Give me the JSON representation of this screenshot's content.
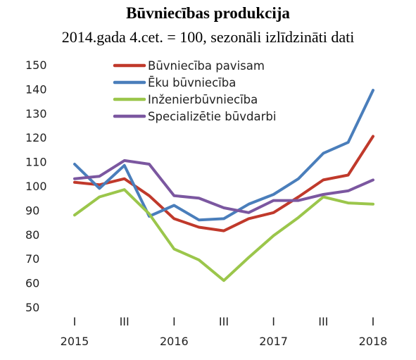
{
  "chart_data": {
    "type": "line",
    "title": "Būvniecības produkcija",
    "subtitle": "2014.gada 4.cet. = 100, sezonāli izlīdzināti dati",
    "xlabel": "",
    "ylabel": "",
    "ylim": [
      50,
      150
    ],
    "yticks": [
      50,
      60,
      70,
      80,
      90,
      100,
      110,
      120,
      130,
      140,
      150
    ],
    "quarters": [
      "2015 Q1",
      "2015 Q2",
      "2015 Q3",
      "2015 Q4",
      "2016 Q1",
      "2016 Q2",
      "2016 Q3",
      "2016 Q4",
      "2017 Q1",
      "2017 Q2",
      "2017 Q3",
      "2017 Q4",
      "2018 Q1"
    ],
    "x_quarter_ticks": [
      "I",
      "III",
      "I",
      "III",
      "I",
      "III",
      "I"
    ],
    "x_year_ticks": [
      "2015",
      "2016",
      "2017",
      "2018"
    ],
    "grid": false,
    "legend_position": "top",
    "series": [
      {
        "name": "Būvniecība pavisam",
        "color": "#c0392b",
        "values": [
          101.5,
          100.5,
          103,
          96,
          86.5,
          83,
          81.5,
          86.5,
          89,
          95.5,
          102.5,
          104.5,
          120.5
        ]
      },
      {
        "name": "Ēku būvniecība",
        "color": "#4a7ebb",
        "values": [
          109,
          99,
          108.5,
          87.5,
          92,
          86,
          86.5,
          92.5,
          96.5,
          103,
          113.5,
          118,
          139.5
        ]
      },
      {
        "name": "Inženierbūvniecība",
        "color": "#9bc64b",
        "values": [
          88,
          95.5,
          98.5,
          88.5,
          74,
          69.5,
          61,
          70.5,
          79.5,
          87,
          95.5,
          93,
          92.5
        ]
      },
      {
        "name": "Specializētie būvdarbi",
        "color": "#7b57a0",
        "values": [
          103,
          104,
          110.5,
          109,
          96,
          95,
          91,
          89,
          94,
          94,
          96.5,
          98,
          102.5
        ]
      }
    ]
  }
}
